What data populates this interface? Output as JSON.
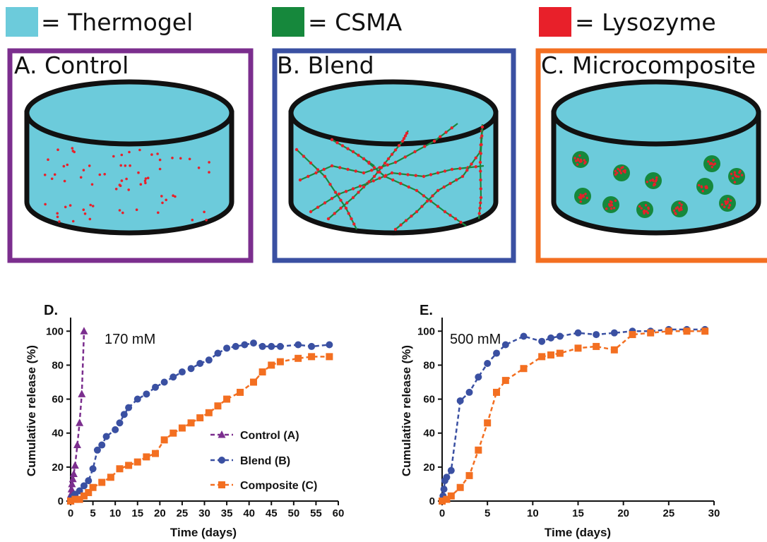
{
  "legend": {
    "items": [
      {
        "label": "= Thermogel",
        "color": "#6ccbdb"
      },
      {
        "label": "= CSMA",
        "color": "#16883c"
      },
      {
        "label": "= Lysozyme",
        "color": "#e8202a"
      }
    ]
  },
  "panels": [
    {
      "title": "A. Control",
      "frame_color": "#7b2e8e",
      "kind": "particles"
    },
    {
      "title": "B. Blend",
      "frame_color": "#3a50a2",
      "kind": "network"
    },
    {
      "title": "C. Microcomposite",
      "frame_color": "#f36f21",
      "kind": "spheres"
    }
  ],
  "colors": {
    "thermogel": "#6ccbdb",
    "csma": "#16883c",
    "lysozyme": "#e8202a",
    "control": "#7b2e8e",
    "blend": "#3a50a2",
    "composite": "#f36f21"
  },
  "chart_data": [
    {
      "type": "line",
      "letter": "D.",
      "annotation": "170 mM",
      "xlabel": "Time (days)",
      "ylabel": "Cumulative release (%)",
      "xlim": [
        0,
        60
      ],
      "ylim": [
        0,
        108
      ],
      "xticks": [
        0,
        5,
        10,
        15,
        20,
        25,
        30,
        35,
        40,
        45,
        50,
        55,
        60
      ],
      "yticks": [
        0,
        20,
        40,
        60,
        80,
        100
      ],
      "legend_position": "lower-right",
      "series": [
        {
          "name": "Control (A)",
          "marker": "triangle",
          "color": "#7b2e8e",
          "x": [
            0,
            0.1,
            0.2,
            0.3,
            0.5,
            0.7,
            1,
            1.5,
            2,
            2.5,
            3
          ],
          "y": [
            0,
            4,
            7,
            10,
            13,
            16,
            21,
            33,
            46,
            63,
            100
          ]
        },
        {
          "name": "Blend (B)",
          "marker": "circle",
          "color": "#3a50a2",
          "x": [
            0,
            0.3,
            0.7,
            1,
            2,
            3,
            4,
            5,
            6,
            7,
            8,
            10,
            11,
            12,
            13,
            15,
            17,
            19,
            21,
            23,
            25,
            27,
            29,
            31,
            33,
            35,
            37,
            39,
            41,
            43,
            45,
            47,
            51,
            54,
            58
          ],
          "y": [
            0,
            2,
            3,
            4,
            6,
            9,
            12,
            19,
            30,
            33,
            38,
            42,
            46,
            51,
            55,
            60,
            63,
            67,
            70,
            73,
            76,
            78,
            81,
            83,
            87,
            90,
            91,
            92,
            93,
            91,
            91,
            91,
            92,
            91,
            92
          ]
        },
        {
          "name": "Composite (C)",
          "marker": "square",
          "color": "#f36f21",
          "x": [
            0,
            1,
            2,
            3,
            4,
            5,
            7,
            9,
            11,
            13,
            15,
            17,
            19,
            21,
            23,
            25,
            27,
            29,
            31,
            33,
            35,
            38,
            41,
            43,
            45,
            47,
            51,
            54,
            58
          ],
          "y": [
            0,
            1,
            1,
            3,
            5,
            8,
            11,
            14,
            19,
            21,
            23,
            26,
            28,
            36,
            40,
            43,
            46,
            49,
            52,
            56,
            60,
            64,
            70,
            76,
            80,
            82,
            84,
            85,
            85
          ]
        }
      ]
    },
    {
      "type": "line",
      "letter": "E.",
      "annotation": "500 mM",
      "xlabel": "Time (days)",
      "ylabel": "Cumulative release (%)",
      "xlim": [
        0,
        30
      ],
      "ylim": [
        0,
        108
      ],
      "xticks": [
        0,
        5,
        10,
        15,
        20,
        25,
        30
      ],
      "yticks": [
        0,
        20,
        40,
        60,
        80,
        100
      ],
      "series": [
        {
          "name": "Blend (B)",
          "marker": "circle",
          "color": "#3a50a2",
          "x": [
            0,
            0.1,
            0.2,
            0.3,
            0.5,
            1,
            2,
            3,
            4,
            5,
            6,
            7,
            9,
            11,
            12,
            13,
            15,
            17,
            19,
            21,
            23,
            25,
            27,
            29
          ],
          "y": [
            0,
            3,
            7,
            12,
            14,
            18,
            59,
            64,
            73,
            81,
            87,
            92,
            97,
            94,
            96,
            97,
            99,
            98,
            99,
            100,
            100,
            101,
            101,
            101
          ]
        },
        {
          "name": "Composite (C)",
          "marker": "square",
          "color": "#f36f21",
          "x": [
            0,
            0.5,
            1,
            2,
            3,
            4,
            5,
            6,
            7,
            9,
            11,
            12,
            13,
            15,
            17,
            19,
            21,
            23,
            25,
            27,
            29
          ],
          "y": [
            0,
            1,
            3,
            8,
            15,
            30,
            46,
            64,
            71,
            78,
            85,
            86,
            87,
            90,
            91,
            89,
            98,
            99,
            100,
            100,
            100
          ]
        }
      ]
    }
  ]
}
